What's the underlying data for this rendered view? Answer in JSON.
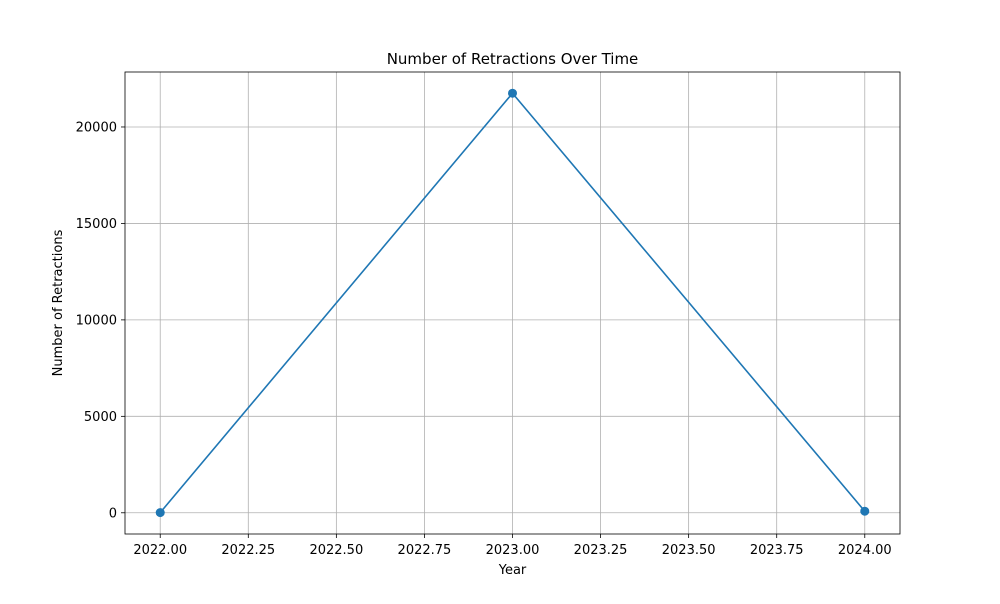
{
  "chart_data": {
    "type": "line",
    "title": "Number of Retractions Over Time",
    "xlabel": "Year",
    "ylabel": "Number of Retractions",
    "x": [
      2022,
      2023,
      2024
    ],
    "series": [
      {
        "values": [
          10,
          21750,
          80
        ],
        "marker": "circle",
        "color": "#1f77b4"
      }
    ],
    "xlim": [
      2021.9,
      2024.1
    ],
    "ylim": [
      -1100,
      22850
    ],
    "xticks": [
      2022.0,
      2022.25,
      2022.5,
      2022.75,
      2023.0,
      2023.25,
      2023.5,
      2023.75,
      2024.0
    ],
    "xtick_labels": [
      "2022.00",
      "2022.25",
      "2022.50",
      "2022.75",
      "2023.00",
      "2023.25",
      "2023.50",
      "2023.75",
      "2024.00"
    ],
    "yticks": [
      0,
      5000,
      10000,
      15000,
      20000
    ],
    "ytick_labels": [
      "0",
      "5000",
      "10000",
      "15000",
      "20000"
    ],
    "grid": true,
    "grid_color": "#b0b0b0"
  }
}
